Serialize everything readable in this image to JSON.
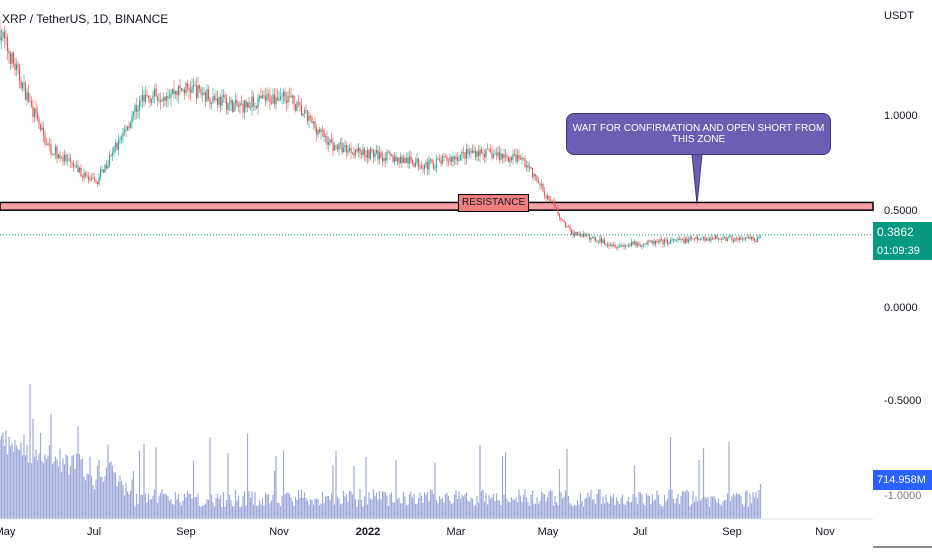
{
  "legend": {
    "symbol_text": "XRP / TetherUS, 1D, BINANCE"
  },
  "axis": {
    "currency": "USDT",
    "y_ticks": [
      "1.0000",
      "0.5000",
      "0.0000",
      "-0.5000",
      "-1.0000"
    ],
    "x_ticks": [
      {
        "label": "May",
        "year": false
      },
      {
        "label": "Jul",
        "year": false
      },
      {
        "label": "Sep",
        "year": false
      },
      {
        "label": "Nov",
        "year": false
      },
      {
        "label": "2022",
        "year": true
      },
      {
        "label": "Mar",
        "year": false
      },
      {
        "label": "May",
        "year": false
      },
      {
        "label": "Jul",
        "year": false
      },
      {
        "label": "Sep",
        "year": false
      },
      {
        "label": "Nov",
        "year": false
      }
    ]
  },
  "price_tag": {
    "price": "0.3862",
    "countdown": "01:09:39",
    "color": "#089981"
  },
  "volume_tag": {
    "value": "714.958M",
    "color": "#2962ff"
  },
  "annotations": {
    "resistance_label": "RESISTANCE",
    "callout_text": "WAIT FOR CONFIRMATION AND OPEN SHORT FROM THIS ZONE"
  },
  "colors": {
    "up": "#26a69a",
    "down": "#ef5350",
    "volume": "#9fa8da",
    "zone_fill": "#f4a0a6",
    "callout": "#6a5fb3"
  },
  "chart_data": {
    "type": "candlestick",
    "symbol": "XRP / TetherUS",
    "interval": "1D",
    "ylim": [
      -1.0,
      1.5
    ],
    "resistance_zone": [
      0.515,
      0.555
    ],
    "last_price": 0.3862,
    "volume_last": "714.958M",
    "x": [
      "2021-05",
      "2021-06",
      "2021-07",
      "2021-08",
      "2021-09",
      "2021-10",
      "2021-11",
      "2021-12",
      "2022-01",
      "2022-02",
      "2022-03",
      "2022-04",
      "2022-05",
      "2022-06",
      "2022-07",
      "2022-08",
      "2022-09"
    ],
    "series": [
      {
        "values": [
          1.45,
          0.85,
          0.65,
          1.1,
          1.15,
          1.05,
          1.12,
          0.85,
          0.8,
          0.75,
          0.82,
          0.78,
          0.4,
          0.33,
          0.35,
          0.37,
          0.36
        ]
      }
    ]
  }
}
